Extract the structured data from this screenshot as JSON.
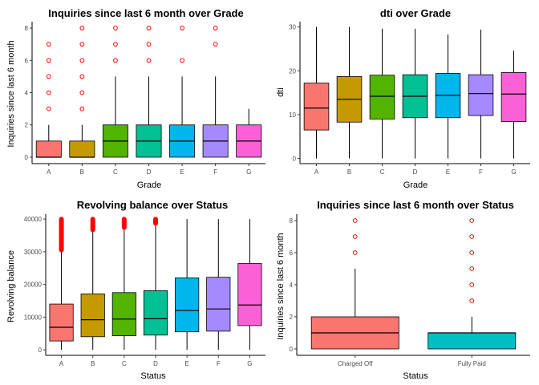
{
  "style": {
    "grade_colors": [
      "#F8766D",
      "#C49A00",
      "#53B400",
      "#00C094",
      "#00B6EB",
      "#A58AFF",
      "#FB61D7"
    ],
    "status_colors": [
      "#F8766D",
      "#00BFC4"
    ],
    "outlier_color": "#FF0000",
    "line_color": "#000000"
  },
  "chart_data": [
    {
      "type": "boxplot",
      "title": "Inquiries since last 6 month over Grade",
      "xlabel": "Grade",
      "ylabel": "Inquiries since last 6 month",
      "ylim": [
        -0.3,
        8.4
      ],
      "yticks": [
        0,
        2,
        4,
        6,
        8
      ],
      "categories": [
        "A",
        "B",
        "C",
        "D",
        "E",
        "F",
        "G"
      ],
      "boxes": [
        {
          "q1": 0,
          "median": 0,
          "q3": 1,
          "low": 0,
          "high": 2,
          "outliers": [
            3,
            4,
            5,
            6,
            7
          ]
        },
        {
          "q1": 0,
          "median": 0,
          "q3": 1,
          "low": 0,
          "high": 2,
          "outliers": [
            3,
            4,
            5,
            6,
            7,
            8
          ]
        },
        {
          "q1": 0,
          "median": 1,
          "q3": 2,
          "low": 0,
          "high": 5,
          "outliers": [
            6,
            7,
            8
          ]
        },
        {
          "q1": 0,
          "median": 1,
          "q3": 2,
          "low": 0,
          "high": 5,
          "outliers": [
            6,
            7,
            8
          ]
        },
        {
          "q1": 0,
          "median": 1,
          "q3": 2,
          "low": 0,
          "high": 5,
          "outliers": [
            6,
            8
          ]
        },
        {
          "q1": 0,
          "median": 1,
          "q3": 2,
          "low": 0,
          "high": 5,
          "outliers": [
            7,
            8
          ]
        },
        {
          "q1": 0,
          "median": 1,
          "q3": 2,
          "low": 0,
          "high": 3,
          "outliers": []
        }
      ]
    },
    {
      "type": "boxplot",
      "title": "dti over Grade",
      "xlabel": "Grade",
      "ylabel": "dti",
      "ylim": [
        -0.8,
        31.2
      ],
      "yticks": [
        0,
        10,
        20,
        30
      ],
      "categories": [
        "A",
        "B",
        "C",
        "D",
        "E",
        "F",
        "G"
      ],
      "boxes": [
        {
          "q1": 6.5,
          "median": 11.5,
          "q3": 17.2,
          "low": 0,
          "high": 30,
          "outliers": []
        },
        {
          "q1": 8.3,
          "median": 13.5,
          "q3": 18.7,
          "low": 0,
          "high": 30,
          "outliers": []
        },
        {
          "q1": 9.0,
          "median": 14.2,
          "q3": 19.0,
          "low": 0,
          "high": 29.6,
          "outliers": []
        },
        {
          "q1": 9.3,
          "median": 14.2,
          "q3": 19.1,
          "low": 0,
          "high": 29.6,
          "outliers": []
        },
        {
          "q1": 9.3,
          "median": 14.4,
          "q3": 19.4,
          "low": 0,
          "high": 28.3,
          "outliers": []
        },
        {
          "q1": 9.8,
          "median": 14.8,
          "q3": 19.1,
          "low": 0,
          "high": 29.4,
          "outliers": []
        },
        {
          "q1": 8.4,
          "median": 14.7,
          "q3": 19.6,
          "low": 0,
          "high": 24.6,
          "outliers": []
        }
      ]
    },
    {
      "type": "boxplot",
      "title": "Revolving balance over Status",
      "xlabel": "Status",
      "ylabel": "Revolving balance",
      "ylim": [
        -1200,
        41500
      ],
      "yticks": [
        0,
        10000,
        20000,
        30000,
        40000
      ],
      "categories": [
        "A",
        "B",
        "C",
        "D",
        "E",
        "F",
        "G"
      ],
      "boxes": [
        {
          "q1": 2700,
          "median": 6900,
          "q3": 14000,
          "low": 0,
          "high": 30500,
          "outliers_range": [
            30500,
            40000
          ]
        },
        {
          "q1": 4000,
          "median": 9200,
          "q3": 17100,
          "low": 0,
          "high": 36700,
          "outliers_range": [
            36700,
            40000
          ]
        },
        {
          "q1": 4300,
          "median": 9400,
          "q3": 17500,
          "low": 0,
          "high": 37400,
          "outliers_range": [
            37400,
            40000
          ]
        },
        {
          "q1": 4500,
          "median": 9500,
          "q3": 18100,
          "low": 0,
          "high": 38700,
          "outliers_range": [
            38700,
            40000
          ]
        },
        {
          "q1": 5500,
          "median": 12000,
          "q3": 22000,
          "low": 0,
          "high": 40000,
          "outliers_range": null
        },
        {
          "q1": 5700,
          "median": 12500,
          "q3": 22200,
          "low": 0,
          "high": 40000,
          "outliers_range": null
        },
        {
          "q1": 7400,
          "median": 13700,
          "q3": 26400,
          "low": 0,
          "high": 40000,
          "outliers_range": null
        }
      ]
    },
    {
      "type": "boxplot",
      "title": "Inquiries since last 6 month over Status",
      "xlabel": "Status",
      "ylabel": "Inquiries since last 6 month",
      "ylim": [
        -0.3,
        8.4
      ],
      "yticks": [
        0,
        2,
        4,
        6,
        8
      ],
      "categories": [
        "Charged Off",
        "Fully Paid"
      ],
      "boxes": [
        {
          "q1": 0,
          "median": 1,
          "q3": 2,
          "low": 0,
          "high": 5,
          "outliers": [
            6,
            7,
            8
          ]
        },
        {
          "q1": 0,
          "median": 1,
          "q3": 1,
          "low": 0,
          "high": 2,
          "outliers": [
            3,
            4,
            5,
            6,
            7,
            8
          ]
        }
      ]
    }
  ]
}
